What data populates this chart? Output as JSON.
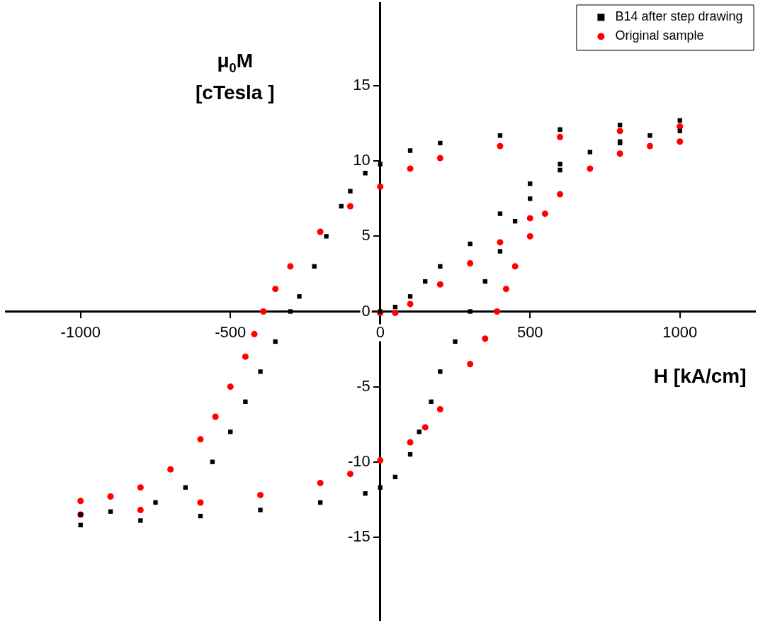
{
  "chart_data": {
    "type": "scatter",
    "xlabel": "H [kA/cm]",
    "ylabel": "μ$_{0}$M\n[cTesla ]",
    "xlim": [
      -1250,
      1250
    ],
    "ylim": [
      -20.5,
      20.5
    ],
    "xticks": [
      -1000,
      -500,
      0,
      500,
      1000
    ],
    "yticks": [
      -15,
      -10,
      -5,
      0,
      5,
      10,
      15
    ],
    "grid": false,
    "legend": "top right",
    "series": [
      {
        "name": "B14 after step drawing",
        "color": "#000000",
        "marker": "square",
        "x": [
          0,
          50,
          100,
          150,
          200,
          300,
          400,
          500,
          600,
          800,
          1000,
          800,
          600,
          400,
          200,
          100,
          0,
          -50,
          -100,
          -130,
          -180,
          -220,
          -270,
          -300,
          -350,
          -400,
          -450,
          -500,
          -560,
          -650,
          -750,
          -900,
          -1000,
          -1000,
          -800,
          -600,
          -400,
          -200,
          -50,
          0,
          50,
          100,
          130,
          170,
          200,
          250,
          300,
          350,
          400,
          450,
          500,
          600,
          700,
          800,
          900,
          1000
        ],
        "values": [
          0,
          0.3,
          1,
          2,
          3,
          4.5,
          6.5,
          8.5,
          9.8,
          11.2,
          12.7,
          12.4,
          12.1,
          11.7,
          11.2,
          10.7,
          9.8,
          9.2,
          8,
          7,
          5,
          3,
          1,
          0,
          -2,
          -4,
          -6,
          -8,
          -10,
          -11.7,
          -12.7,
          -13.3,
          -13.5,
          -14.2,
          -13.9,
          -13.6,
          -13.2,
          -12.7,
          -12.1,
          -11.7,
          -11,
          -9.5,
          -8,
          -6,
          -4,
          -2,
          0,
          2,
          4,
          6,
          7.5,
          9.4,
          10.6,
          11.3,
          11.7,
          12
        ]
      },
      {
        "name": "Original sample",
        "color": "#ff0000",
        "marker": "circle",
        "x": [
          0,
          50,
          100,
          200,
          300,
          400,
          500,
          1000,
          800,
          600,
          400,
          200,
          100,
          0,
          -100,
          -200,
          -300,
          -350,
          -390,
          -420,
          -450,
          -500,
          -550,
          -600,
          -700,
          -800,
          -900,
          -1000,
          -1000,
          -800,
          -600,
          -400,
          -200,
          -100,
          0,
          100,
          150,
          200,
          300,
          350,
          390,
          420,
          450,
          500,
          550,
          600,
          700,
          800,
          900,
          1000
        ],
        "values": [
          -0.1,
          -0.1,
          0.5,
          1.8,
          3.2,
          4.6,
          6.2,
          12.3,
          12,
          11.6,
          11,
          10.2,
          9.5,
          8.3,
          7,
          5.3,
          3,
          1.5,
          0,
          -1.5,
          -3,
          -5,
          -7,
          -8.5,
          -10.5,
          -11.7,
          -12.3,
          -12.6,
          -13.5,
          -13.2,
          -12.7,
          -12.2,
          -11.4,
          -10.8,
          -9.9,
          -8.7,
          -7.7,
          -6.5,
          -3.5,
          -1.8,
          0,
          1.5,
          3,
          5,
          6.5,
          7.8,
          9.5,
          10.5,
          11,
          11.3
        ]
      }
    ]
  }
}
